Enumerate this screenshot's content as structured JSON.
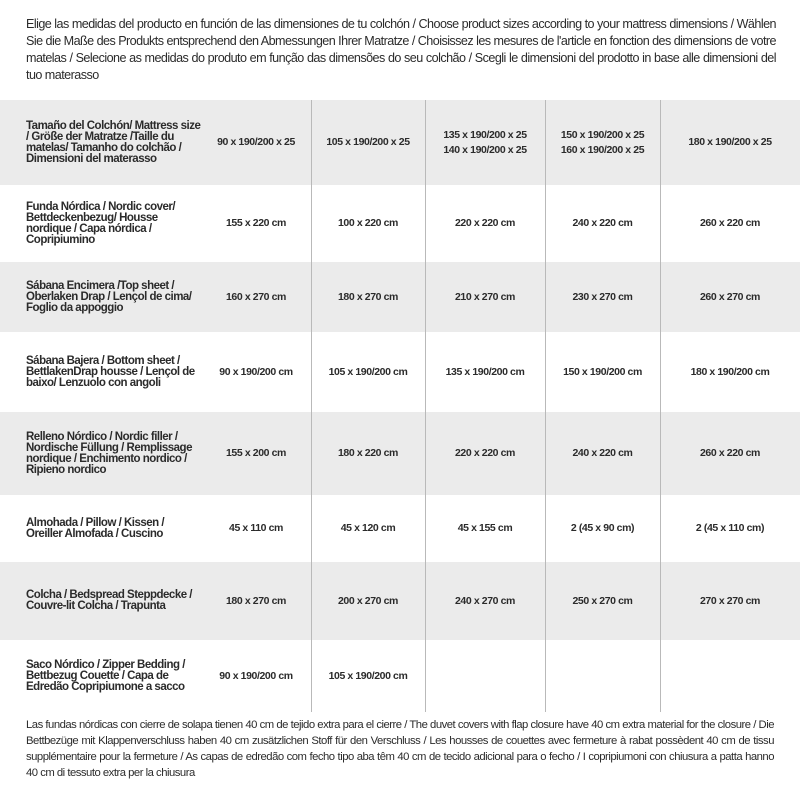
{
  "intro": "Elige las medidas del producto en función de las dimensiones de tu colchón / Choose product sizes according to your mattress dimensions / Wählen Sie die Maße des Produkts entsprechend den Abmessungen Ihrer Matratze / Choisissez les mesures de l'article en fonction des dimensions de votre matelas / Selecione as medidas do produto em função das dimensões do seu colchão / Scegli le dimensioni del prodotto in base alle dimensioni del tuo materasso",
  "header": {
    "label": "Tamaño del Colchón/ Mattress size / Größe der Matratze /Taille du matelas/ Tamanho do colchão / Dimensioni del materasso",
    "cols": [
      "90 x 190/200 x 25",
      "105 x 190/200 x 25",
      "135 x 190/200 x 25\n140 x 190/200 x 25",
      "150 x 190/200 x 25\n160 x 190/200 x 25",
      "180 x 190/200 x 25"
    ]
  },
  "rows": [
    {
      "label": "Funda Nórdica / Nordic cover/ Bettdeckenbezug/ Housse nordique / Capa nórdica / Copripiumino",
      "cells": [
        "155 x 220 cm",
        "100 x 220 cm",
        "220 x 220 cm",
        "240 x 220 cm",
        "260 x 220 cm"
      ]
    },
    {
      "label": "Sábana Encimera /Top sheet / Oberlaken Drap / Lençol de cima/ Foglio da appoggio",
      "cells": [
        "160 x 270 cm",
        "180 x 270 cm",
        "210 x 270 cm",
        "230 x 270 cm",
        "260 x 270 cm"
      ]
    },
    {
      "label": "Sábana Bajera / Bottom sheet / BettlakenDrap housse / Lençol de baixo/ Lenzuolo con angoli",
      "cells": [
        "90 x 190/200 cm",
        "105 x 190/200 cm",
        "135 x 190/200 cm",
        "150 x 190/200 cm",
        "180 x 190/200 cm"
      ]
    },
    {
      "label": "Relleno Nórdico / Nordic filler / Nordische Füllung / Remplissage nordique / Enchimento nordico / Ripieno nordico",
      "cells": [
        "155 x 200 cm",
        "180 x 220 cm",
        "220 x 220 cm",
        "240 x 220 cm",
        "260 x 220 cm"
      ]
    },
    {
      "label": "Almohada / Pillow / Kissen / Oreiller Almofada / Cuscino",
      "cells": [
        "45 x 110 cm",
        "45 x 120 cm",
        "45 x 155 cm",
        "2 (45 x 90 cm)",
        "2 (45 x 110 cm)"
      ]
    },
    {
      "label": "Colcha / Bedspread Steppdecke / Couvre-lit Colcha / Trapunta",
      "cells": [
        "180 x 270 cm",
        "200 x 270 cm",
        "240 x 270 cm",
        "250 x 270 cm",
        "270 x 270 cm"
      ]
    },
    {
      "label": "Saco Nórdico / Zipper Bedding / Bettbezug Couette / Capa de Edredão Copripiumone a sacco",
      "cells": [
        "90 x 190/200 cm",
        "105 x 190/200 cm",
        "",
        "",
        ""
      ]
    }
  ],
  "note": "Las fundas nórdicas con cierre de solapa tienen 40 cm de tejido extra para el cierre / The duvet covers with flap closure have 40 cm extra material for the closure / Die Bettbezüge mit Klappenverschluss haben 40 cm zusätzlichen Stoff für den Verschluss / Les housses de couettes avec fermeture à rabat possèdent 40 cm de tissu supplémentaire pour la fermeture / As capas de edredão com fecho tipo aba têm 40 cm de tecido adicional para o fecho / I copripiumoni con chiusura a patta hanno 40 cm di tessuto extra per la chiusura"
}
